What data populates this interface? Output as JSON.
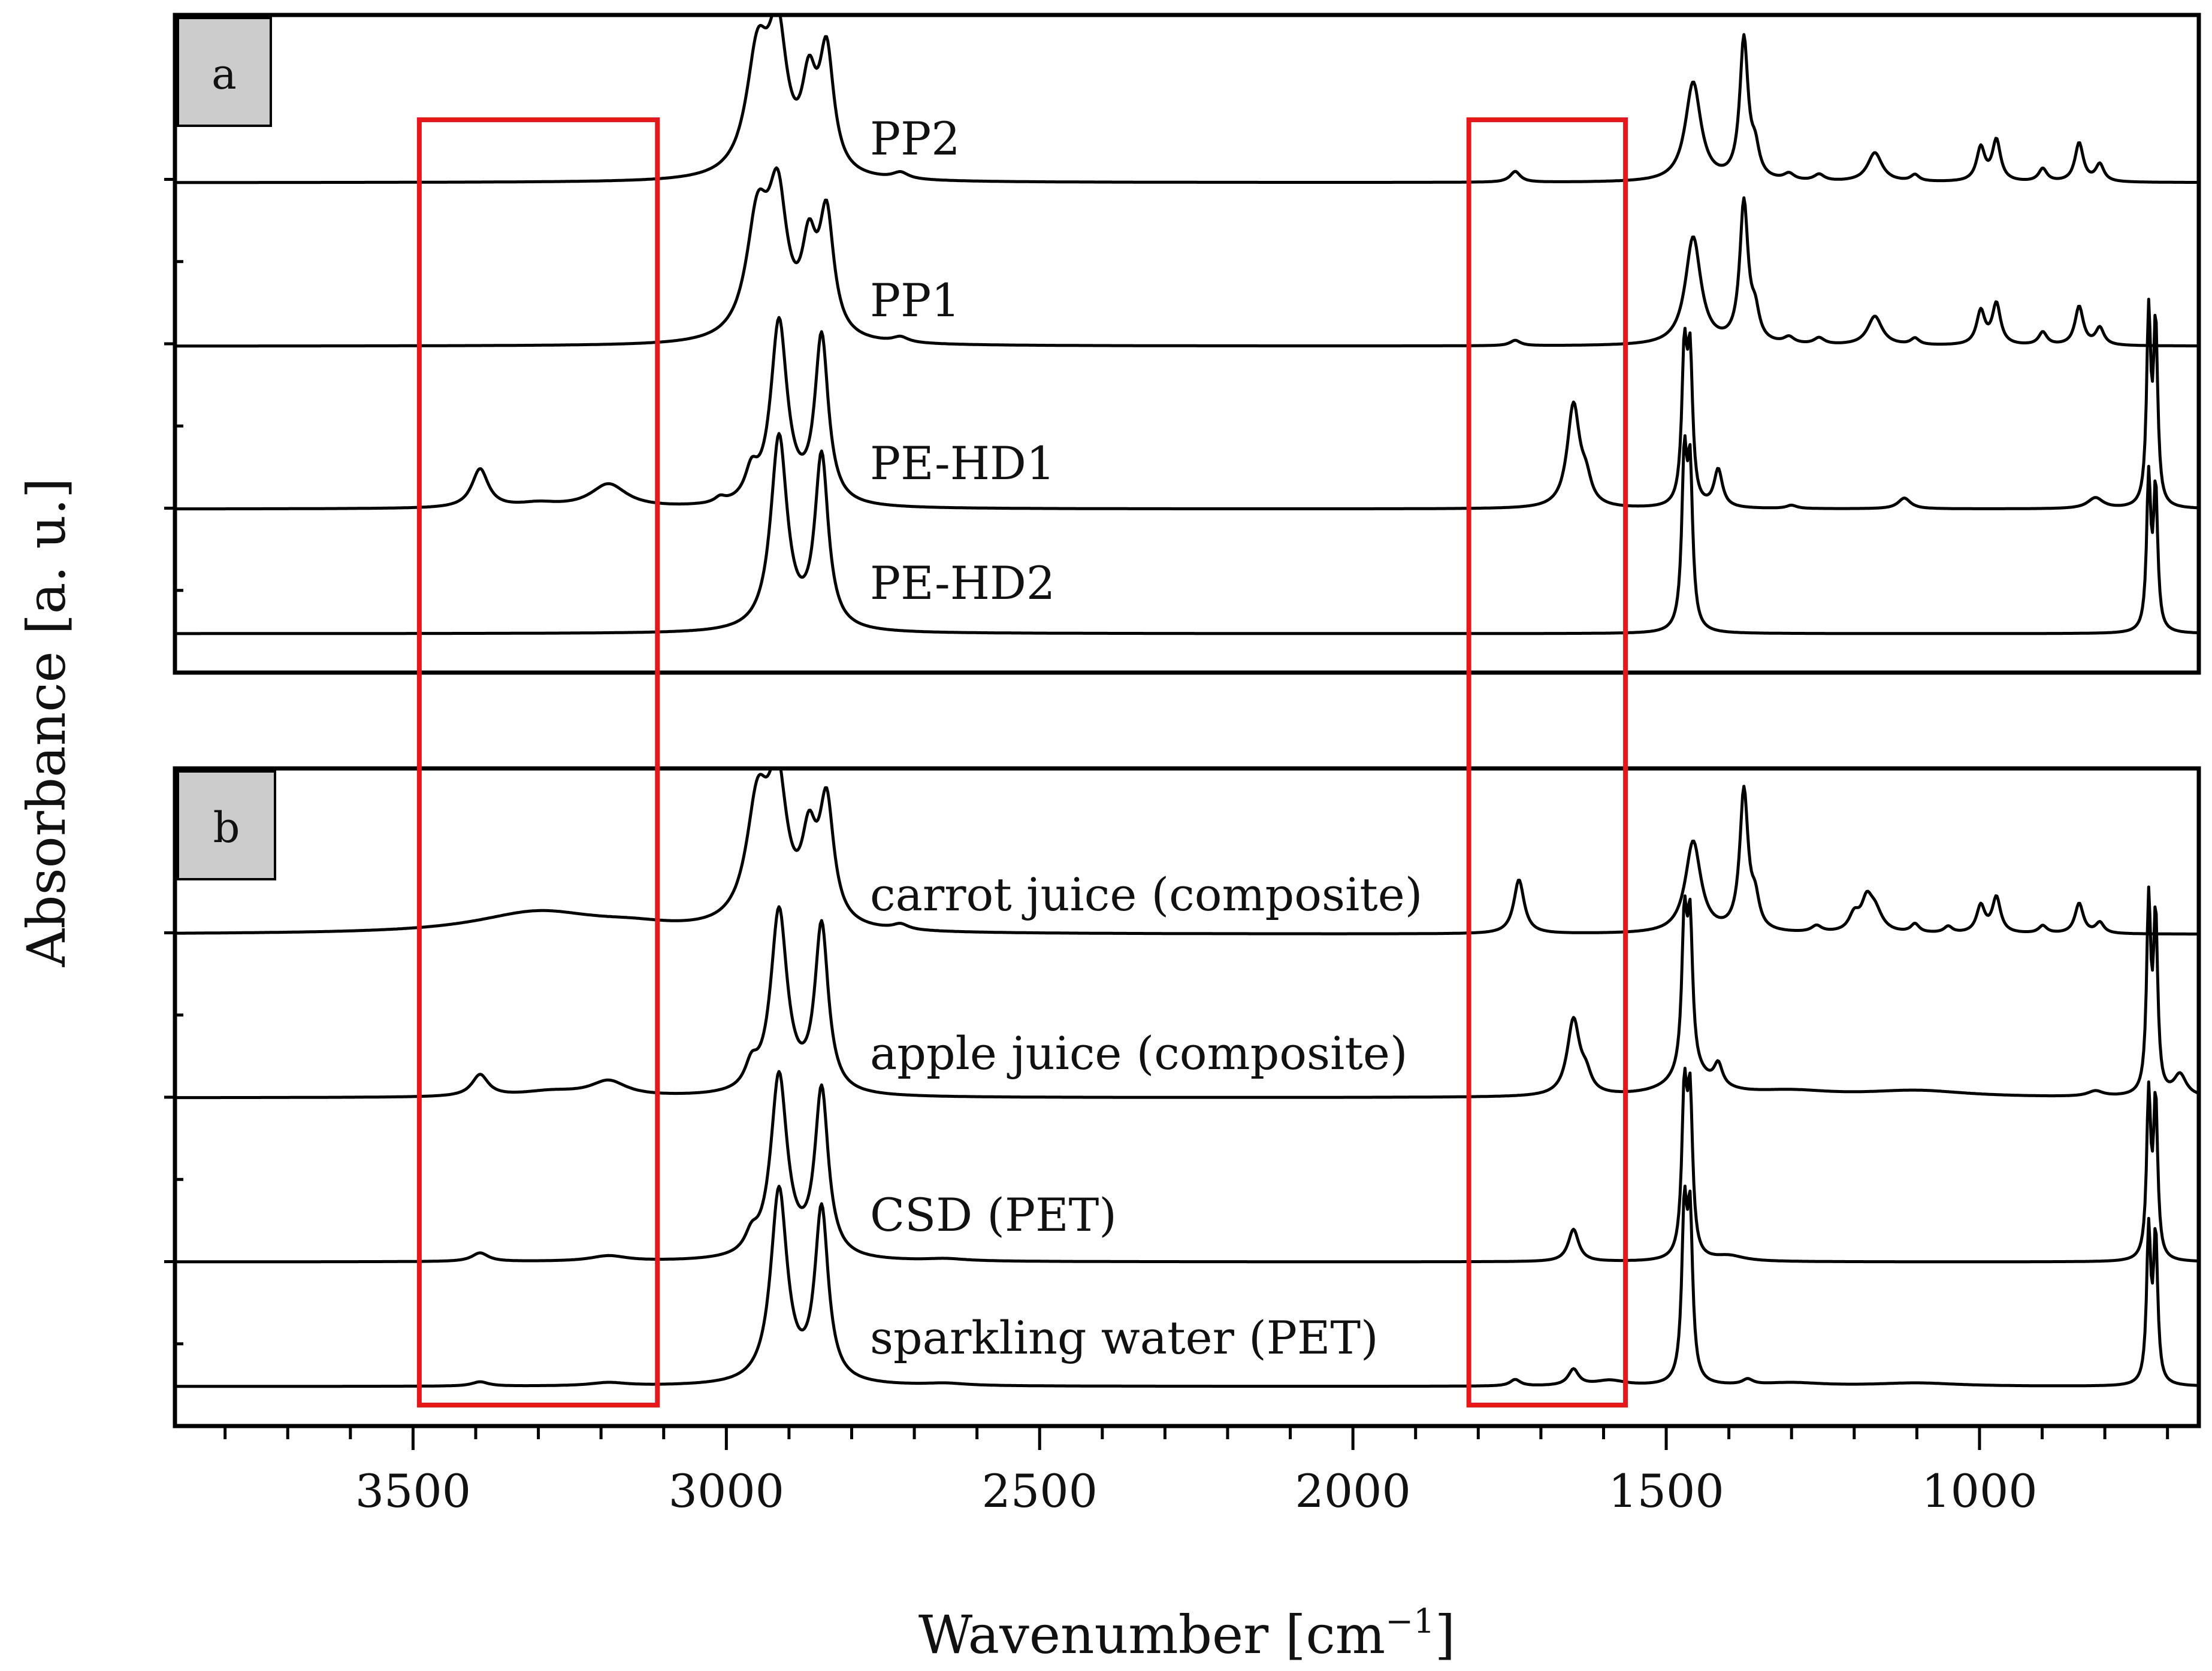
{
  "chart_data": {
    "type": "line",
    "xlabel": "Wavenumber [cm⁻¹]",
    "xlabel_main": "Wavenumber [cm",
    "xlabel_sup": "−1",
    "xlabel_close": "]",
    "ylabel": "Absorbance [a. u.]",
    "xlim": [
      3880,
      650
    ],
    "x_ticks": [
      3500,
      3000,
      2500,
      2000,
      1500,
      1000
    ],
    "x_tick_labels": [
      "3500",
      "3000",
      "2500",
      "2000",
      "1500",
      "1000"
    ],
    "highlight_regions": [
      {
        "from": 3490,
        "to": 3110
      },
      {
        "from": 1815,
        "to": 1565
      }
    ],
    "highlight_color": "#e8171c",
    "line_color": "#000000",
    "panels": [
      {
        "label": "a",
        "series": [
          {
            "name": "PP2",
            "peaks": [
              [
                2950,
                1.1,
                22
              ],
              [
                2918,
                1.2,
                18
              ],
              [
                2868,
                0.75,
                14
              ],
              [
                2840,
                1.1,
                14
              ],
              [
                2722,
                0.06,
                15
              ],
              [
                1741,
                0.1,
                10
              ],
              [
                1457,
                0.92,
                15
              ],
              [
                1376,
                1.3,
                8
              ],
              [
                1358,
                0.24,
                8
              ],
              [
                1304,
                0.06,
                10
              ],
              [
                1256,
                0.06,
                10
              ],
              [
                1167,
                0.27,
                14
              ],
              [
                1103,
                0.06,
                8
              ],
              [
                998,
                0.31,
                8
              ],
              [
                973,
                0.38,
                8
              ],
              [
                899,
                0.12,
                8
              ],
              [
                841,
                0.36,
                8
              ],
              [
                808,
                0.16,
                8
              ]
            ]
          },
          {
            "name": "PP1",
            "peaks": [
              [
                2950,
                1.1,
                22
              ],
              [
                2918,
                1.2,
                18
              ],
              [
                2868,
                0.75,
                14
              ],
              [
                2840,
                1.1,
                14
              ],
              [
                2722,
                0.05,
                15
              ],
              [
                1741,
                0.05,
                10
              ],
              [
                1457,
                1.0,
                15
              ],
              [
                1376,
                1.3,
                8
              ],
              [
                1358,
                0.24,
                8
              ],
              [
                1304,
                0.06,
                10
              ],
              [
                1256,
                0.06,
                10
              ],
              [
                1167,
                0.27,
                14
              ],
              [
                1103,
                0.06,
                8
              ],
              [
                998,
                0.31,
                8
              ],
              [
                973,
                0.38,
                8
              ],
              [
                899,
                0.12,
                8
              ],
              [
                841,
                0.36,
                8
              ],
              [
                808,
                0.16,
                8
              ]
            ]
          },
          {
            "name": "PE-HD1",
            "peaks": [
              [
                3393,
                0.36,
                16
              ],
              [
                3300,
                0.04,
                40
              ],
              [
                3188,
                0.22,
                35
              ],
              [
                3010,
                0.05,
                10
              ],
              [
                2960,
                0.25,
                12
              ],
              [
                2916,
                1.7,
                16
              ],
              [
                2848,
                1.55,
                13
              ],
              [
                1648,
                0.95,
                12
              ],
              [
                1628,
                0.2,
                10
              ],
              [
                1471,
                1.35,
                5
              ],
              [
                1462,
                1.3,
                5
              ],
              [
                1417,
                0.35,
                8
              ],
              [
                1300,
                0.03,
                10
              ],
              [
                1120,
                0.1,
                12
              ],
              [
                815,
                0.1,
                15
              ],
              [
                730,
                1.75,
                4
              ],
              [
                719,
                1.65,
                4
              ]
            ]
          },
          {
            "name": "PE-HD2",
            "peaks": [
              [
                2916,
                1.8,
                16
              ],
              [
                2848,
                1.6,
                13
              ],
              [
                1471,
                1.5,
                5
              ],
              [
                1462,
                1.4,
                5
              ],
              [
                730,
                1.4,
                4
              ],
              [
                719,
                1.3,
                4
              ]
            ]
          }
        ]
      },
      {
        "label": "b",
        "series": [
          {
            "name": "carrot juice (composite)",
            "peaks": [
              [
                3300,
                0.2,
                120
              ],
              [
                3150,
                0.05,
                80
              ],
              [
                2950,
                1.1,
                22
              ],
              [
                2918,
                1.2,
                18
              ],
              [
                2868,
                0.7,
                14
              ],
              [
                2840,
                1.1,
                14
              ],
              [
                2722,
                0.05,
                15
              ],
              [
                1735,
                0.5,
                10
              ],
              [
                1457,
                0.85,
                15
              ],
              [
                1376,
                1.3,
                8
              ],
              [
                1358,
                0.25,
                8
              ],
              [
                1260,
                0.06,
                10
              ],
              [
                1200,
                0.15,
                10
              ],
              [
                1180,
                0.25,
                10
              ],
              [
                1167,
                0.2,
                14
              ],
              [
                1103,
                0.08,
                8
              ],
              [
                1050,
                0.06,
                8
              ],
              [
                998,
                0.25,
                8
              ],
              [
                973,
                0.33,
                8
              ],
              [
                899,
                0.07,
                8
              ],
              [
                841,
                0.28,
                8
              ],
              [
                808,
                0.1,
                8
              ]
            ]
          },
          {
            "name": "apple juice (composite)",
            "peaks": [
              [
                3393,
                0.2,
                16
              ],
              [
                3280,
                0.05,
                60
              ],
              [
                3188,
                0.14,
                35
              ],
              [
                2960,
                0.2,
                12
              ],
              [
                2916,
                1.7,
                16
              ],
              [
                2848,
                1.55,
                13
              ],
              [
                1648,
                0.7,
                12
              ],
              [
                1628,
                0.15,
                10
              ],
              [
                1471,
                1.35,
                5
              ],
              [
                1462,
                1.3,
                5
              ],
              [
                1460,
                0.2,
                40
              ],
              [
                1417,
                0.2,
                8
              ],
              [
                1300,
                0.05,
                80
              ],
              [
                1100,
                0.06,
                100
              ],
              [
                815,
                0.05,
                15
              ],
              [
                730,
                1.75,
                4
              ],
              [
                719,
                1.6,
                4
              ],
              [
                680,
                0.2,
                12
              ]
            ]
          },
          {
            "name": "CSD (PET)",
            "peaks": [
              [
                3393,
                0.08,
                16
              ],
              [
                3188,
                0.05,
                35
              ],
              [
                2960,
                0.15,
                12
              ],
              [
                2916,
                1.7,
                16
              ],
              [
                2848,
                1.55,
                13
              ],
              [
                2650,
                0.02,
                40
              ],
              [
                1648,
                0.3,
                10
              ],
              [
                1471,
                1.45,
                5
              ],
              [
                1462,
                1.4,
                5
              ],
              [
                1400,
                0.05,
                30
              ],
              [
                730,
                1.5,
                4
              ],
              [
                719,
                1.45,
                4
              ]
            ]
          },
          {
            "name": "sparkling water (PET)",
            "peaks": [
              [
                3393,
                0.04,
                16
              ],
              [
                3188,
                0.03,
                35
              ],
              [
                2916,
                1.8,
                16
              ],
              [
                2848,
                1.6,
                13
              ],
              [
                2650,
                0.02,
                40
              ],
              [
                1741,
                0.06,
                10
              ],
              [
                1648,
                0.15,
                10
              ],
              [
                1590,
                0.05,
                30
              ],
              [
                1471,
                1.5,
                5
              ],
              [
                1462,
                1.45,
                5
              ],
              [
                1370,
                0.05,
                10
              ],
              [
                1300,
                0.03,
                60
              ],
              [
                1100,
                0.03,
                80
              ],
              [
                730,
                1.4,
                4
              ],
              [
                719,
                1.35,
                4
              ]
            ]
          }
        ]
      }
    ]
  }
}
